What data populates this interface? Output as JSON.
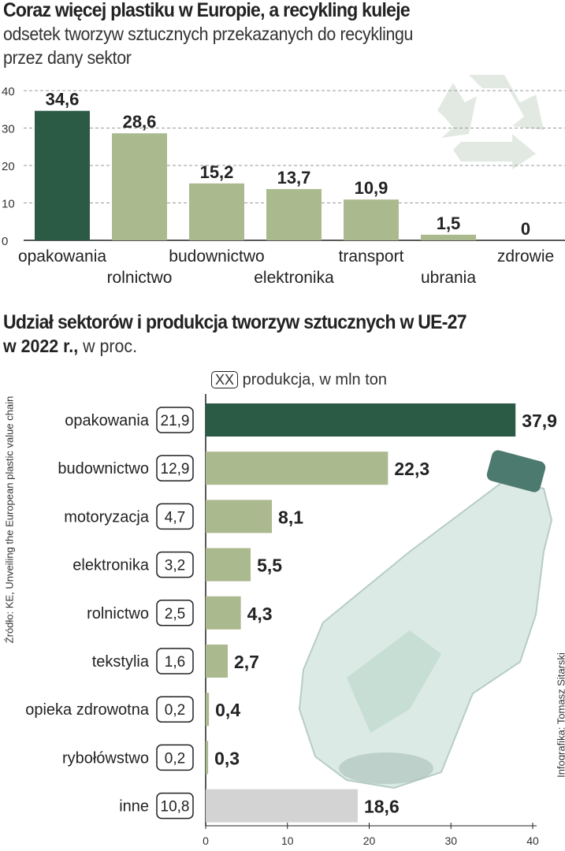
{
  "chart_data": [
    {
      "type": "bar",
      "title": "Coraz więcej plastiku w Europie, a recykling kuleje",
      "subtitle_line1": "odsetek tworzyw sztucznych przekazanych do recyklingu",
      "subtitle_line2": "przez dany sektor",
      "categories": [
        "opakowania",
        "rolnictwo",
        "budownictwo",
        "elektronika",
        "transport",
        "ubrania",
        "zdrowie"
      ],
      "values": [
        34.6,
        28.6,
        15.2,
        13.7,
        10.9,
        1.5,
        0
      ],
      "value_labels": [
        "34,6",
        "28,6",
        "15,2",
        "13,7",
        "10,9",
        "1,5",
        "0"
      ],
      "ylim": [
        0,
        40
      ],
      "yticks": [
        "0",
        "10",
        "20",
        "30",
        "40"
      ],
      "grid": true,
      "colors": {
        "highlight": "#2b5a45",
        "normal": "#abb98f"
      }
    },
    {
      "type": "bar",
      "orientation": "horizontal",
      "title_bold": "Udział sektorów i produkcja tworzyw sztucznych w UE-27",
      "title_bold2": "w 2022 r.,",
      "title_light": " w proc.",
      "legend": {
        "box": "XX",
        "label": "produkcja, w mln ton"
      },
      "categories": [
        "opakowania",
        "budownictwo",
        "motoryzacja",
        "elektronika",
        "rolnictwo",
        "tekstylia",
        "opieka zdrowotna",
        "rybołówstwo",
        "inne"
      ],
      "values": [
        37.9,
        22.3,
        8.1,
        5.5,
        4.3,
        2.7,
        0.4,
        0.3,
        18.6
      ],
      "value_labels": [
        "37,9",
        "22,3",
        "8,1",
        "5,5",
        "4,3",
        "2,7",
        "0,4",
        "0,3",
        "18,6"
      ],
      "production": [
        "21,9",
        "12,9",
        "4,7",
        "3,2",
        "2,5",
        "1,6",
        "0,2",
        "0,2",
        "10,8"
      ],
      "xlim": [
        0,
        40
      ],
      "xticks": [
        "0",
        "10",
        "20",
        "30",
        "40"
      ],
      "colors": {
        "highlight": "#2b5a45",
        "normal": "#abb98f",
        "other": "#d3d3d3"
      }
    }
  ],
  "source": "Źródło: KE, Unveiling the European plastic value chain",
  "credit": "Infografika: Tomasz Sitarski"
}
